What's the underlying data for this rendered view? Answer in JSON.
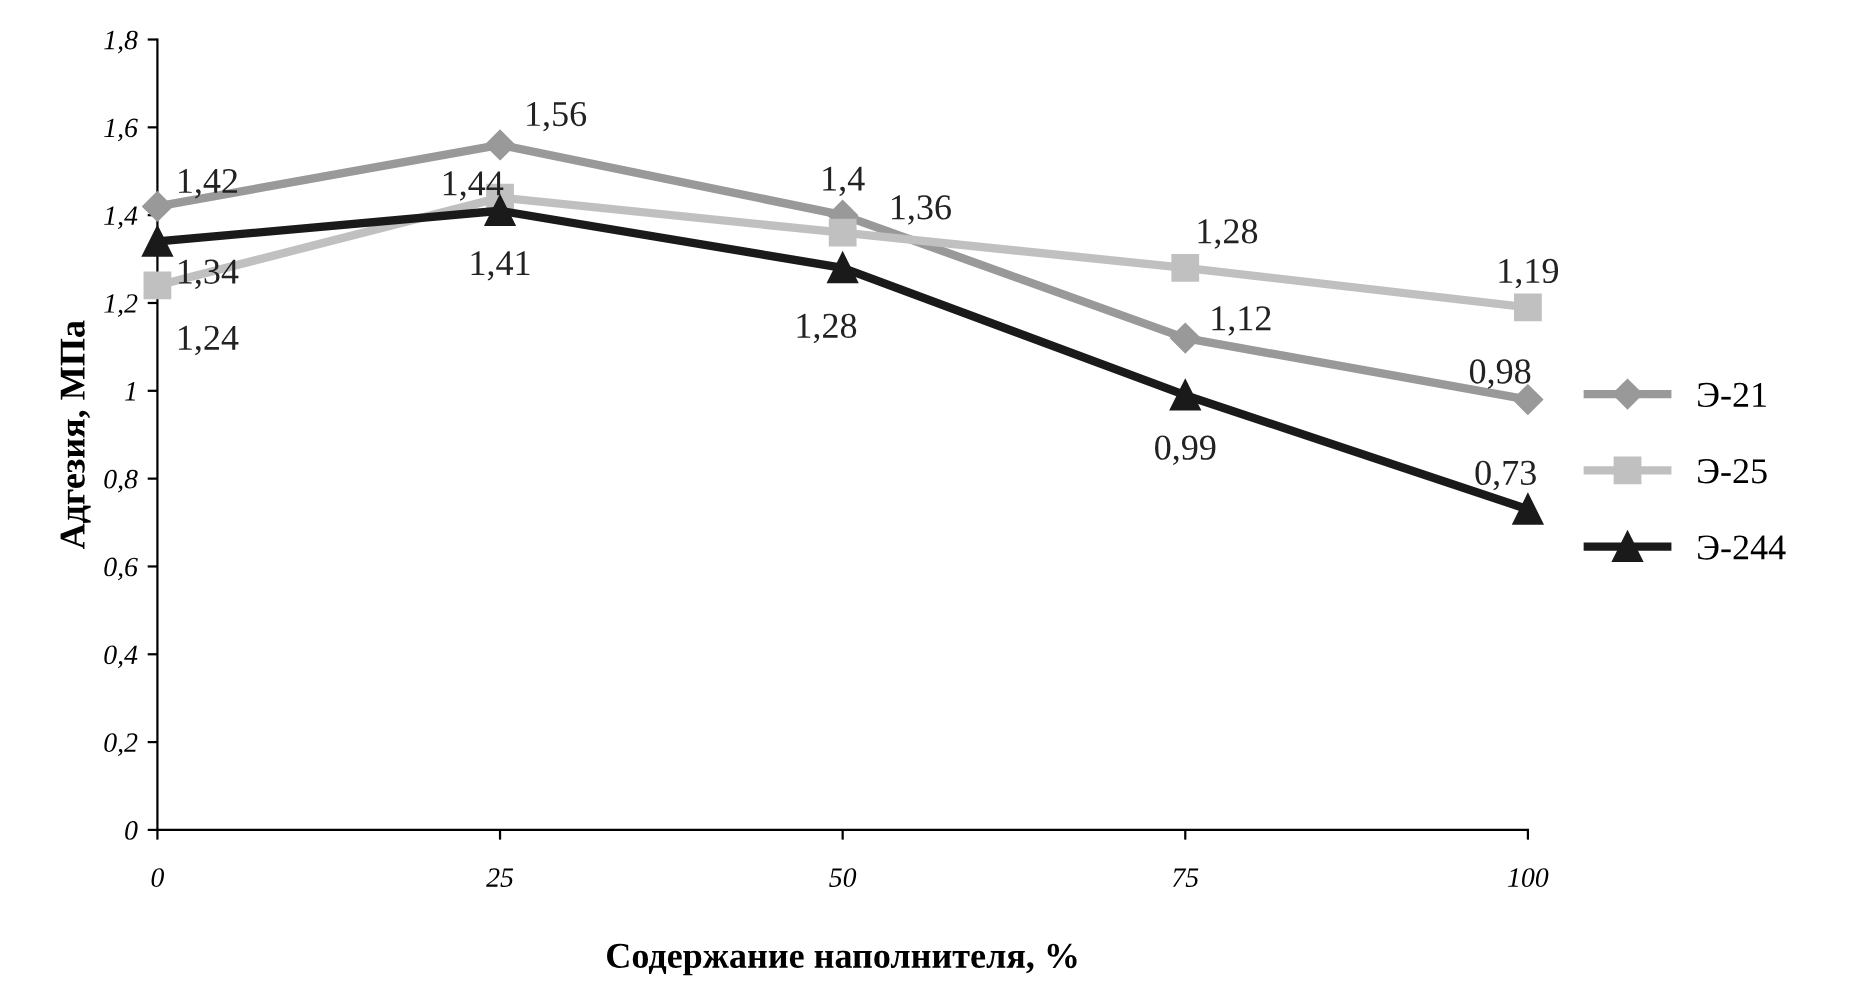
{
  "chart_data": {
    "type": "line",
    "xlabel": "Содержание наполнителя, %",
    "ylabel": "Адгезия, МПа",
    "x": [
      0,
      25,
      50,
      75,
      100
    ],
    "xlim": [
      0,
      100
    ],
    "xticks": [
      0,
      25,
      50,
      75,
      100
    ],
    "ylim": [
      0,
      1.8
    ],
    "yticks": [
      0,
      {
        "value": 0.2,
        "label": "0,2"
      },
      {
        "value": 0.4,
        "label": "0,4"
      },
      {
        "value": 0.6,
        "label": "0,6"
      },
      {
        "value": 0.8,
        "label": "0,8"
      },
      1,
      {
        "value": 1.2,
        "label": "1,2"
      },
      {
        "value": 1.4,
        "label": "1,4"
      },
      {
        "value": 1.6,
        "label": "1,6"
      },
      {
        "value": 1.8,
        "label": "1,8"
      }
    ],
    "grid": false,
    "legend": "right",
    "line_style": "solid",
    "series": [
      {
        "name": "Э-21",
        "color": "#999999",
        "marker": "diamond",
        "values": [
          1.42,
          1.56,
          1.4,
          1.12,
          0.98
        ],
        "value_labels": [
          "1,42",
          "1,56",
          "1,4",
          "1,12",
          "0,98"
        ]
      },
      {
        "name": "Э-25",
        "color": "#c0c0c0",
        "marker": "square",
        "values": [
          1.24,
          1.44,
          1.36,
          1.28,
          1.19
        ],
        "value_labels": [
          "1,24",
          "1,44",
          "1,36",
          "1,28",
          "1,19"
        ]
      },
      {
        "name": "Э-244",
        "color": "#1a1a1a",
        "marker": "triangle",
        "values": [
          1.34,
          1.41,
          1.28,
          0.99,
          0.73
        ],
        "value_labels": [
          "1,34",
          "1,41",
          "1,28",
          "0,99",
          "0,73"
        ]
      }
    ]
  }
}
